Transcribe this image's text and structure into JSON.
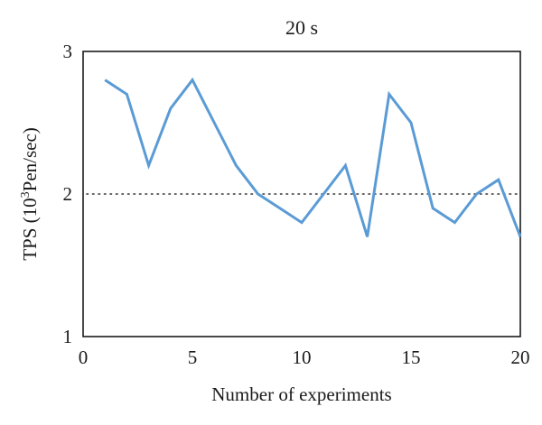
{
  "chart_data": {
    "type": "line",
    "title": "20 s",
    "xlabel": "Number of experiments",
    "ylabel_main": "TPS (10",
    "ylabel_sup": "3",
    "ylabel_tail": "Pen/sec)",
    "xlim": [
      0,
      20
    ],
    "ylim": [
      1,
      3
    ],
    "x_ticks": [
      0,
      5,
      10,
      15,
      20
    ],
    "y_ticks": [
      1,
      2,
      3
    ],
    "grid": false,
    "reference_line": {
      "y": 2,
      "style": "dotted",
      "color": "#333333"
    },
    "series": [
      {
        "color": "#5b9bd5",
        "x": [
          1,
          2,
          3,
          4,
          5,
          6,
          7,
          8,
          9,
          10,
          11,
          12,
          13,
          14,
          15,
          16,
          17,
          18,
          19,
          20
        ],
        "y": [
          2.8,
          2.7,
          2.2,
          2.6,
          2.8,
          2.5,
          2.2,
          2.0,
          1.9,
          1.8,
          2.0,
          2.2,
          1.7,
          2.7,
          2.5,
          1.9,
          1.8,
          2.0,
          2.1,
          1.7
        ]
      }
    ]
  }
}
